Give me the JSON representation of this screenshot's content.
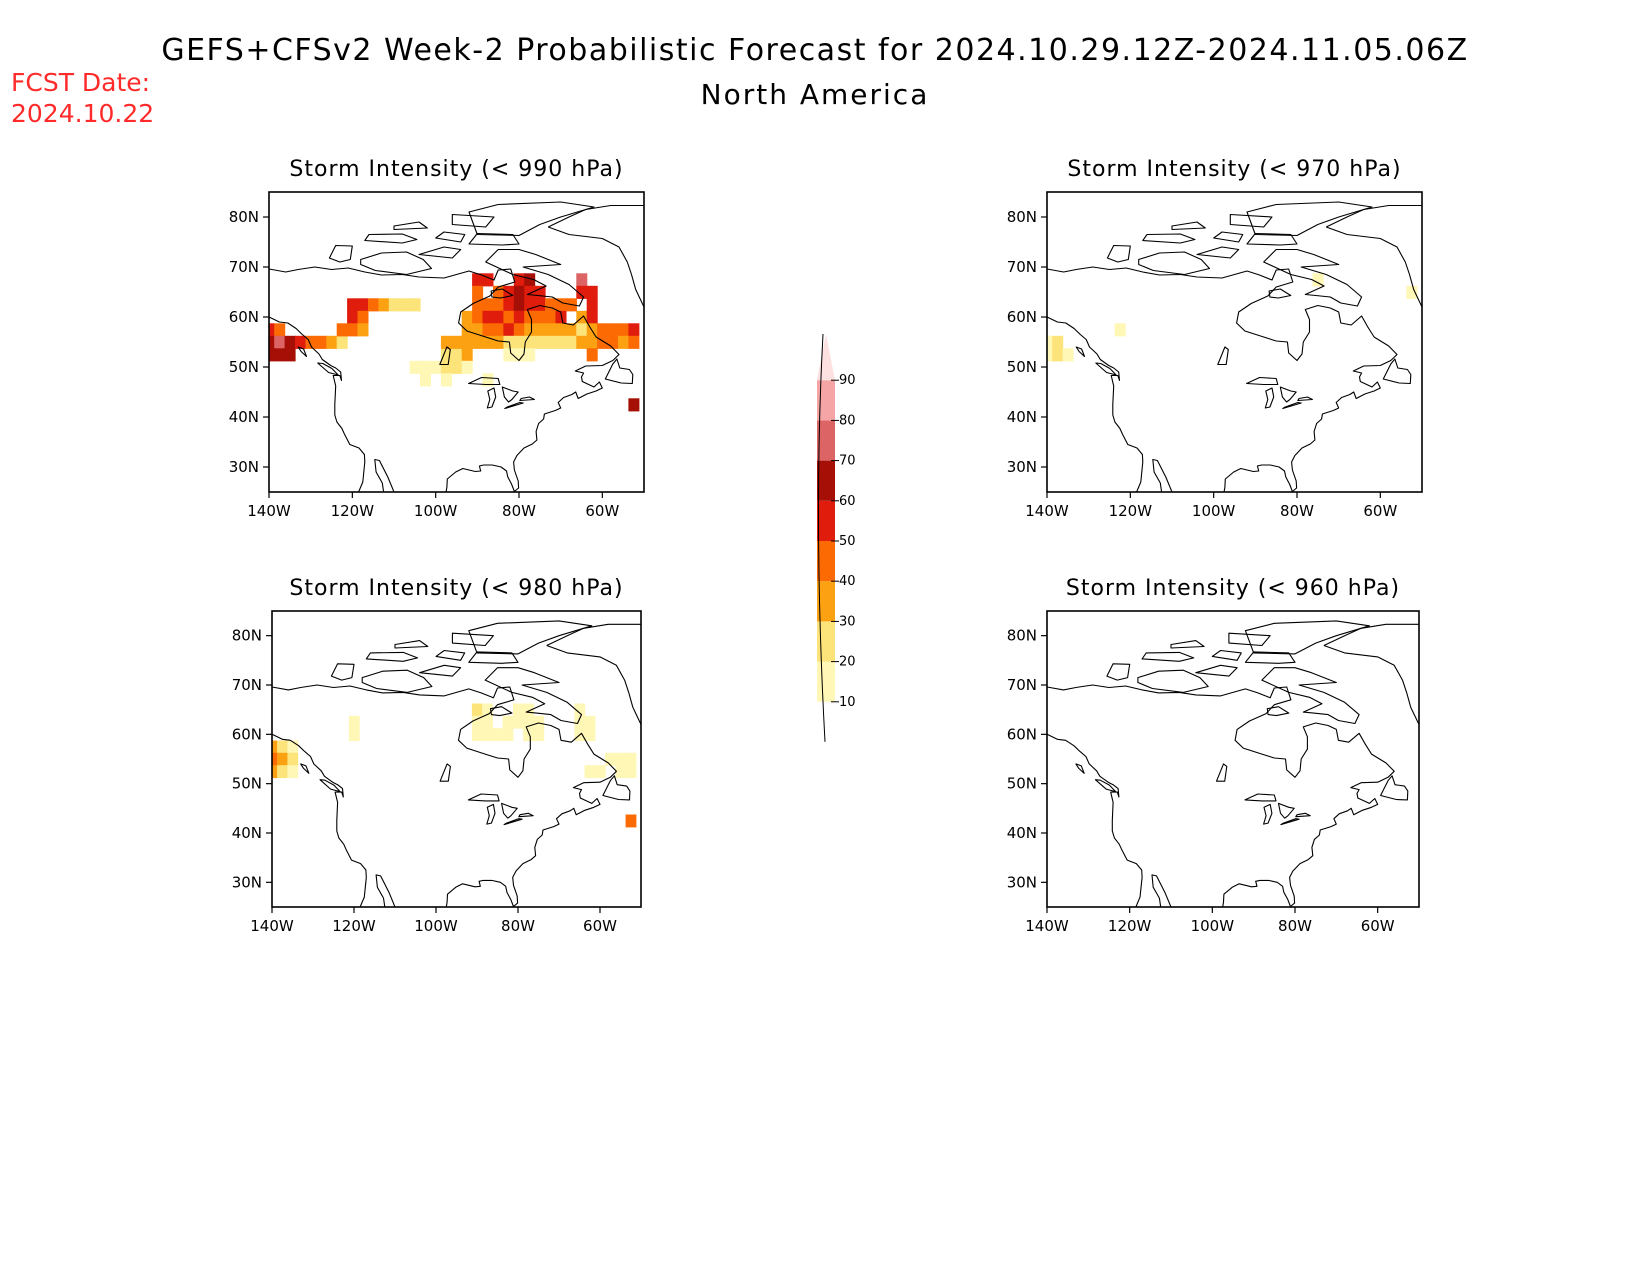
{
  "header": {
    "title": "GEFS+CFSv2 Week-2 Probabilistic Forecast for 2024.10.29.12Z-2024.11.05.06Z",
    "subtitle": "North America",
    "fcst_label": "FCST Date:",
    "fcst_date": "2024.10.22"
  },
  "colors": {
    "c10": "#fff7b5",
    "c20": "#fde47a",
    "c30": "#fca112",
    "c40": "#fc6a04",
    "c50": "#e01c0c",
    "c60": "#a50f06",
    "c70": "#dc6464",
    "c80": "#f5a5a5",
    "c90": "#fde0e0"
  },
  "colorbar": {
    "labels": [
      "10",
      "20",
      "30",
      "40",
      "50",
      "60",
      "70",
      "80",
      "90"
    ],
    "colors": [
      "#fff7b5",
      "#fde47a",
      "#fca112",
      "#fc6a04",
      "#e01c0c",
      "#a50f06",
      "#dc6464",
      "#f5a5a5",
      "#fde0e0"
    ]
  },
  "panels": [
    {
      "title": "Storm Intensity (< 990 hPa)",
      "lat_labels": [
        "80N",
        "70N",
        "60N",
        "50N",
        "40N",
        "30N"
      ],
      "lon_labels": [
        "140W",
        "120W",
        "100W",
        "80W",
        "60W"
      ],
      "cells": [
        {
          "lon": -140,
          "lat": 57.5,
          "cat": 5
        },
        {
          "lon": -137.5,
          "lat": 57.5,
          "cat": 4
        },
        {
          "lon": -140,
          "lat": 55,
          "cat": 6
        },
        {
          "lon": -137.5,
          "lat": 55,
          "cat": 7
        },
        {
          "lon": -135,
          "lat": 55,
          "cat": 6
        },
        {
          "lon": -132.5,
          "lat": 55,
          "cat": 5
        },
        {
          "lon": -130,
          "lat": 55,
          "cat": 4
        },
        {
          "lon": -127.5,
          "lat": 55,
          "cat": 4
        },
        {
          "lon": -125,
          "lat": 55,
          "cat": 3
        },
        {
          "lon": -122.5,
          "lat": 55,
          "cat": 2
        },
        {
          "lon": -140,
          "lat": 52.5,
          "cat": 6
        },
        {
          "lon": -137.5,
          "lat": 52.5,
          "cat": 6
        },
        {
          "lon": -135,
          "lat": 52.5,
          "cat": 6
        },
        {
          "lon": -120,
          "lat": 62.5,
          "cat": 5
        },
        {
          "lon": -117.5,
          "lat": 62.5,
          "cat": 5
        },
        {
          "lon": -115,
          "lat": 62.5,
          "cat": 4
        },
        {
          "lon": -112.5,
          "lat": 62.5,
          "cat": 3
        },
        {
          "lon": -110,
          "lat": 62.5,
          "cat": 2
        },
        {
          "lon": -107.5,
          "lat": 62.5,
          "cat": 2
        },
        {
          "lon": -105,
          "lat": 62.5,
          "cat": 2
        },
        {
          "lon": -120,
          "lat": 60,
          "cat": 5
        },
        {
          "lon": -117.5,
          "lat": 60,
          "cat": 4
        },
        {
          "lon": -122.5,
          "lat": 57.5,
          "cat": 4
        },
        {
          "lon": -120,
          "lat": 57.5,
          "cat": 4
        },
        {
          "lon": -117.5,
          "lat": 57.5,
          "cat": 3
        },
        {
          "lon": -105,
          "lat": 50,
          "cat": 1
        },
        {
          "lon": -102.5,
          "lat": 50,
          "cat": 1
        },
        {
          "lon": -100,
          "lat": 50,
          "cat": 1
        },
        {
          "lon": -97.5,
          "lat": 52.5,
          "cat": 2
        },
        {
          "lon": -95,
          "lat": 52.5,
          "cat": 2
        },
        {
          "lon": -92.5,
          "lat": 52.5,
          "cat": 3
        },
        {
          "lon": -97.5,
          "lat": 50,
          "cat": 2
        },
        {
          "lon": -95,
          "lat": 50,
          "cat": 2
        },
        {
          "lon": -92.5,
          "lat": 50,
          "cat": 1
        },
        {
          "lon": -102.5,
          "lat": 47.5,
          "cat": 1
        },
        {
          "lon": -97.5,
          "lat": 47.5,
          "cat": 1
        },
        {
          "lon": -87.5,
          "lat": 47.5,
          "cat": 1
        },
        {
          "lon": -90,
          "lat": 67.5,
          "cat": 5
        },
        {
          "lon": -87.5,
          "lat": 67.5,
          "cat": 5
        },
        {
          "lon": -80,
          "lat": 67.5,
          "cat": 5
        },
        {
          "lon": -77.5,
          "lat": 67.5,
          "cat": 6
        },
        {
          "lon": -65,
          "lat": 67.5,
          "cat": 7
        },
        {
          "lon": -90,
          "lat": 65,
          "cat": 4
        },
        {
          "lon": -85,
          "lat": 65,
          "cat": 4
        },
        {
          "lon": -82.5,
          "lat": 65,
          "cat": 5
        },
        {
          "lon": -80,
          "lat": 65,
          "cat": 6
        },
        {
          "lon": -77.5,
          "lat": 65,
          "cat": 5
        },
        {
          "lon": -75,
          "lat": 65,
          "cat": 5
        },
        {
          "lon": -65,
          "lat": 65,
          "cat": 5
        },
        {
          "lon": -62.5,
          "lat": 65,
          "cat": 5
        },
        {
          "lon": -90,
          "lat": 62.5,
          "cat": 4
        },
        {
          "lon": -87.5,
          "lat": 62.5,
          "cat": 4
        },
        {
          "lon": -85,
          "lat": 62.5,
          "cat": 4
        },
        {
          "lon": -82.5,
          "lat": 62.5,
          "cat": 5
        },
        {
          "lon": -80,
          "lat": 62.5,
          "cat": 6
        },
        {
          "lon": -77.5,
          "lat": 62.5,
          "cat": 5
        },
        {
          "lon": -75,
          "lat": 62.5,
          "cat": 5
        },
        {
          "lon": -72.5,
          "lat": 62.5,
          "cat": 4
        },
        {
          "lon": -70,
          "lat": 62.5,
          "cat": 4
        },
        {
          "lon": -67.5,
          "lat": 62.5,
          "cat": 4
        },
        {
          "lon": -62.5,
          "lat": 62.5,
          "cat": 5
        },
        {
          "lon": -92.5,
          "lat": 60,
          "cat": 3
        },
        {
          "lon": -90,
          "lat": 60,
          "cat": 4
        },
        {
          "lon": -87.5,
          "lat": 60,
          "cat": 5
        },
        {
          "lon": -85,
          "lat": 60,
          "cat": 5
        },
        {
          "lon": -82.5,
          "lat": 60,
          "cat": 4
        },
        {
          "lon": -80,
          "lat": 60,
          "cat": 5
        },
        {
          "lon": -77.5,
          "lat": 60,
          "cat": 4
        },
        {
          "lon": -75,
          "lat": 60,
          "cat": 4
        },
        {
          "lon": -72.5,
          "lat": 60,
          "cat": 4
        },
        {
          "lon": -70,
          "lat": 60,
          "cat": 5
        },
        {
          "lon": -65,
          "lat": 60,
          "cat": 3
        },
        {
          "lon": -62.5,
          "lat": 60,
          "cat": 5
        },
        {
          "lon": -92.5,
          "lat": 57.5,
          "cat": 3
        },
        {
          "lon": -90,
          "lat": 57.5,
          "cat": 3
        },
        {
          "lon": -87.5,
          "lat": 57.5,
          "cat": 4
        },
        {
          "lon": -85,
          "lat": 57.5,
          "cat": 4
        },
        {
          "lon": -82.5,
          "lat": 57.5,
          "cat": 5
        },
        {
          "lon": -80,
          "lat": 57.5,
          "cat": 4
        },
        {
          "lon": -77.5,
          "lat": 57.5,
          "cat": 3
        },
        {
          "lon": -75,
          "lat": 57.5,
          "cat": 3
        },
        {
          "lon": -72.5,
          "lat": 57.5,
          "cat": 3
        },
        {
          "lon": -70,
          "lat": 57.5,
          "cat": 3
        },
        {
          "lon": -67.5,
          "lat": 57.5,
          "cat": 3
        },
        {
          "lon": -65,
          "lat": 57.5,
          "cat": 2
        },
        {
          "lon": -62.5,
          "lat": 57.5,
          "cat": 3
        },
        {
          "lon": -60,
          "lat": 57.5,
          "cat": 4
        },
        {
          "lon": -57.5,
          "lat": 57.5,
          "cat": 4
        },
        {
          "lon": -55,
          "lat": 57.5,
          "cat": 4
        },
        {
          "lon": -52.5,
          "lat": 57.5,
          "cat": 5
        },
        {
          "lon": -97.5,
          "lat": 55,
          "cat": 3
        },
        {
          "lon": -95,
          "lat": 55,
          "cat": 3
        },
        {
          "lon": -92.5,
          "lat": 55,
          "cat": 3
        },
        {
          "lon": -90,
          "lat": 55,
          "cat": 3
        },
        {
          "lon": -87.5,
          "lat": 55,
          "cat": 3
        },
        {
          "lon": -85,
          "lat": 55,
          "cat": 3
        },
        {
          "lon": -82.5,
          "lat": 55,
          "cat": 2
        },
        {
          "lon": -80,
          "lat": 55,
          "cat": 2
        },
        {
          "lon": -77.5,
          "lat": 55,
          "cat": 2
        },
        {
          "lon": -75,
          "lat": 55,
          "cat": 2
        },
        {
          "lon": -72.5,
          "lat": 55,
          "cat": 2
        },
        {
          "lon": -70,
          "lat": 55,
          "cat": 2
        },
        {
          "lon": -67.5,
          "lat": 55,
          "cat": 2
        },
        {
          "lon": -65,
          "lat": 55,
          "cat": 3
        },
        {
          "lon": -62.5,
          "lat": 55,
          "cat": 3
        },
        {
          "lon": -60,
          "lat": 55,
          "cat": 4
        },
        {
          "lon": -57.5,
          "lat": 55,
          "cat": 4
        },
        {
          "lon": -55,
          "lat": 55,
          "cat": 3
        },
        {
          "lon": -52.5,
          "lat": 55,
          "cat": 4
        },
        {
          "lon": -82.5,
          "lat": 52.5,
          "cat": 1
        },
        {
          "lon": -80,
          "lat": 52.5,
          "cat": 1
        },
        {
          "lon": -77.5,
          "lat": 52.5,
          "cat": 1
        },
        {
          "lon": -62.5,
          "lat": 52.5,
          "cat": 4
        },
        {
          "lon": -52.5,
          "lat": 42.5,
          "cat": 6
        }
      ]
    },
    {
      "title": "Storm Intensity (< 970 hPa)",
      "lat_labels": [
        "80N",
        "70N",
        "60N",
        "50N",
        "40N",
        "30N"
      ],
      "lon_labels": [
        "140W",
        "120W",
        "100W",
        "80W",
        "60W"
      ],
      "cells": [
        {
          "lon": -140,
          "lat": 55,
          "cat": 1
        },
        {
          "lon": -137.5,
          "lat": 55,
          "cat": 2
        },
        {
          "lon": -140,
          "lat": 52.5,
          "cat": 1
        },
        {
          "lon": -137.5,
          "lat": 52.5,
          "cat": 2
        },
        {
          "lon": -135,
          "lat": 52.5,
          "cat": 1
        },
        {
          "lon": -122.5,
          "lat": 57.5,
          "cat": 1
        },
        {
          "lon": -75,
          "lat": 67.5,
          "cat": 1
        },
        {
          "lon": -52.5,
          "lat": 65,
          "cat": 1
        }
      ]
    },
    {
      "title": "Storm Intensity (< 980 hPa)",
      "lat_labels": [
        "80N",
        "70N",
        "60N",
        "50N",
        "40N",
        "30N"
      ],
      "lon_labels": [
        "140W",
        "120W",
        "100W",
        "80W",
        "60W"
      ],
      "cells": [
        {
          "lon": -140,
          "lat": 57.5,
          "cat": 3
        },
        {
          "lon": -137.5,
          "lat": 57.5,
          "cat": 2
        },
        {
          "lon": -135,
          "lat": 57.5,
          "cat": 1
        },
        {
          "lon": -140,
          "lat": 55,
          "cat": 4
        },
        {
          "lon": -137.5,
          "lat": 55,
          "cat": 3
        },
        {
          "lon": -135,
          "lat": 55,
          "cat": 2
        },
        {
          "lon": -140,
          "lat": 52.5,
          "cat": 3
        },
        {
          "lon": -137.5,
          "lat": 52.5,
          "cat": 2
        },
        {
          "lon": -135,
          "lat": 52.5,
          "cat": 1
        },
        {
          "lon": -120,
          "lat": 62.5,
          "cat": 1
        },
        {
          "lon": -120,
          "lat": 60,
          "cat": 1
        },
        {
          "lon": -90,
          "lat": 65,
          "cat": 2
        },
        {
          "lon": -87.5,
          "lat": 65,
          "cat": 1
        },
        {
          "lon": -80,
          "lat": 65,
          "cat": 1
        },
        {
          "lon": -77.5,
          "lat": 65,
          "cat": 1
        },
        {
          "lon": -65,
          "lat": 65,
          "cat": 1
        },
        {
          "lon": -90,
          "lat": 62.5,
          "cat": 1
        },
        {
          "lon": -87.5,
          "lat": 62.5,
          "cat": 1
        },
        {
          "lon": -82.5,
          "lat": 62.5,
          "cat": 1
        },
        {
          "lon": -80,
          "lat": 62.5,
          "cat": 1
        },
        {
          "lon": -77.5,
          "lat": 62.5,
          "cat": 1
        },
        {
          "lon": -75,
          "lat": 62.5,
          "cat": 1
        },
        {
          "lon": -65,
          "lat": 62.5,
          "cat": 1
        },
        {
          "lon": -62.5,
          "lat": 62.5,
          "cat": 1
        },
        {
          "lon": -90,
          "lat": 60,
          "cat": 1
        },
        {
          "lon": -87.5,
          "lat": 60,
          "cat": 1
        },
        {
          "lon": -85,
          "lat": 60,
          "cat": 1
        },
        {
          "lon": -82.5,
          "lat": 60,
          "cat": 1
        },
        {
          "lon": -77.5,
          "lat": 60,
          "cat": 1
        },
        {
          "lon": -75,
          "lat": 60,
          "cat": 1
        },
        {
          "lon": -65,
          "lat": 60,
          "cat": 1
        },
        {
          "lon": -62.5,
          "lat": 60,
          "cat": 1
        },
        {
          "lon": -57.5,
          "lat": 55,
          "cat": 1
        },
        {
          "lon": -55,
          "lat": 55,
          "cat": 1
        },
        {
          "lon": -52.5,
          "lat": 55,
          "cat": 1
        },
        {
          "lon": -62.5,
          "lat": 52.5,
          "cat": 1
        },
        {
          "lon": -60,
          "lat": 52.5,
          "cat": 1
        },
        {
          "lon": -55,
          "lat": 52.5,
          "cat": 1
        },
        {
          "lon": -52.5,
          "lat": 52.5,
          "cat": 1
        },
        {
          "lon": -52.5,
          "lat": 42.5,
          "cat": 4
        }
      ]
    },
    {
      "title": "Storm Intensity (< 960 hPa)",
      "lat_labels": [
        "80N",
        "70N",
        "60N",
        "50N",
        "40N",
        "30N"
      ],
      "lon_labels": [
        "140W",
        "120W",
        "100W",
        "80W",
        "60W"
      ],
      "cells": []
    }
  ]
}
